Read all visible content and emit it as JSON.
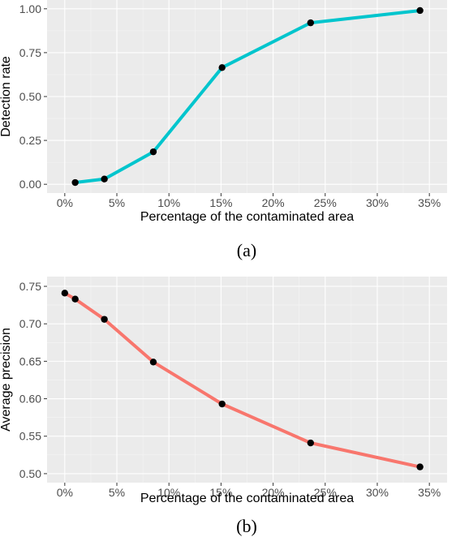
{
  "chart_data": [
    {
      "type": "line",
      "caption": "(a)",
      "xlabel": "Percentage of the contaminated area",
      "ylabel": "Detection rate",
      "x_tick_labels": [
        "0%",
        "5%",
        "10%",
        "15%",
        "20%",
        "25%",
        "30%",
        "35%"
      ],
      "x_tick_values": [
        0,
        5,
        10,
        15,
        20,
        25,
        30,
        35
      ],
      "y_tick_labels": [
        "0.00",
        "0.25",
        "0.50",
        "0.75",
        "1.00"
      ],
      "y_tick_values": [
        0,
        0.25,
        0.5,
        0.75,
        1.0
      ],
      "xlim": [
        -1.7,
        36.7
      ],
      "ylim": [
        -0.05,
        1.05
      ],
      "grid": true,
      "color": "#00c5cd",
      "x": [
        1,
        3.8,
        8.5,
        15.1,
        23.6,
        34.1
      ],
      "y": [
        0.01,
        0.03,
        0.185,
        0.665,
        0.92,
        0.99
      ]
    },
    {
      "type": "line",
      "caption": "(b)",
      "xlabel": "Percentage of the contaminated area",
      "ylabel": "Average precision",
      "x_tick_labels": [
        "0%",
        "5%",
        "10%",
        "15%",
        "20%",
        "25%",
        "30%",
        "35%"
      ],
      "x_tick_values": [
        0,
        5,
        10,
        15,
        20,
        25,
        30,
        35
      ],
      "y_tick_labels": [
        "0.50",
        "0.55",
        "0.60",
        "0.65",
        "0.70",
        "0.75"
      ],
      "y_tick_values": [
        0.5,
        0.55,
        0.6,
        0.65,
        0.7,
        0.75
      ],
      "xlim": [
        -1.7,
        36.7
      ],
      "ylim": [
        0.488,
        0.763
      ],
      "grid": true,
      "color": "#f8766d",
      "x": [
        0,
        1,
        3.8,
        8.5,
        15.1,
        23.6,
        34.1
      ],
      "y": [
        0.741,
        0.733,
        0.706,
        0.649,
        0.593,
        0.541,
        0.509
      ]
    }
  ]
}
